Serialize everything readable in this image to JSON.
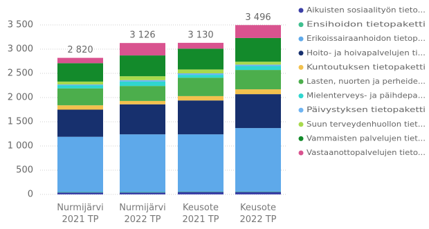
{
  "chart_data": {
    "type": "stacked_bar",
    "categories": [
      "Nurmijärvi 2021 TP",
      "Nurmijärvi 2022 TP",
      "Keusote 2021 TP",
      "Keusote 2022 TP"
    ],
    "series": [
      {
        "name": "Aikuisten sosiaalityön tieto...",
        "color": "#3b3fa6",
        "values": [
          40,
          40,
          50,
          50
        ]
      },
      {
        "name": "Ensihoidon tietopaketti",
        "color": "#3fbf8f",
        "values": [
          10,
          10,
          10,
          10
        ]
      },
      {
        "name": "Erikoissairaanhoidon tietop...",
        "color": "#5ea9ea",
        "values": [
          1140,
          1190,
          1180,
          1310
        ]
      },
      {
        "name": "Hoito- ja hoivapalvelujen ti...",
        "color": "#17306e",
        "values": [
          560,
          620,
          700,
          700
        ]
      },
      {
        "name": "Kuntoutuksen tietopaketti",
        "color": "#f2c14e",
        "values": [
          90,
          70,
          90,
          100
        ]
      },
      {
        "name": "Lasten, nuorten ja perheide...",
        "color": "#4cae4c",
        "values": [
          350,
          310,
          380,
          400
        ]
      },
      {
        "name": "Mielenterveys- ja päihdepa...",
        "color": "#2fd6cf",
        "values": [
          60,
          90,
          60,
          80
        ]
      },
      {
        "name": "Päivystyksen tietopaketti",
        "color": "#6fb4f2",
        "values": [
          20,
          30,
          30,
          30
        ]
      },
      {
        "name": "Suun terveydenhuollon tiet...",
        "color": "#a8d94c",
        "values": [
          60,
          80,
          80,
          60
        ]
      },
      {
        "name": "Vammaisten palvelujen tiet...",
        "color": "#138a2b",
        "values": [
          380,
          430,
          430,
          490
        ]
      },
      {
        "name": "Vastaanottopalvelujen tieto...",
        "color": "#d9538f",
        "values": [
          110,
          256,
          120,
          266
        ]
      }
    ],
    "totals": [
      2820,
      3126,
      3130,
      3496
    ],
    "total_labels": [
      "2 820",
      "3 126",
      "3 130",
      "3 496"
    ],
    "ylim": [
      0,
      3500
    ],
    "yticks": [
      0,
      500,
      {
        "value": 1000,
        "label": "1 000"
      },
      {
        "value": 1500,
        "label": "1 500"
      },
      {
        "value": 2000,
        "label": "2 000"
      },
      {
        "value": 2500,
        "label": "2 500"
      },
      {
        "value": 3000,
        "label": "3 000"
      },
      {
        "value": 3500,
        "label": "3 500"
      }
    ],
    "grid": true
  }
}
